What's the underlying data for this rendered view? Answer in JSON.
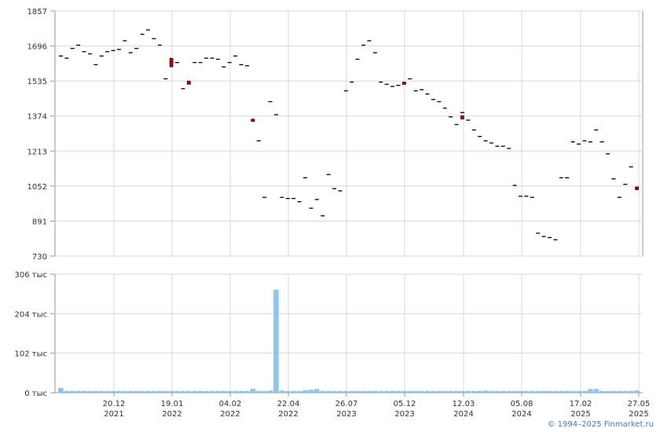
{
  "credit": "© 1994–2025 Finmarket.ru",
  "colors": {
    "grid": "#d8d8d8",
    "axis": "#999999",
    "candle_down": "#c00000",
    "volume": "#8ec6ee"
  },
  "chart_data": [
    {
      "type": "candlestick",
      "ylim": [
        730,
        1857
      ],
      "yticks": [
        "1857",
        "1696",
        "1535",
        "1374",
        "1213",
        "1052",
        "891",
        "730"
      ],
      "series": [
        {
          "values": [
            [
              0.5,
              1650
            ],
            [
              1,
              1640
            ],
            [
              1.5,
              1685
            ],
            [
              2,
              1700
            ],
            [
              2.5,
              1670
            ],
            [
              3,
              1660
            ],
            [
              3.5,
              1610
            ],
            [
              4,
              1650
            ],
            [
              4.5,
              1670
            ],
            [
              5,
              1675
            ],
            [
              5.5,
              1680
            ],
            [
              6,
              1720
            ],
            [
              6.5,
              1665
            ],
            [
              7,
              1685
            ],
            [
              7.5,
              1750
            ],
            [
              8,
              1770
            ],
            [
              8.5,
              1730
            ],
            [
              9,
              1700
            ],
            [
              9.5,
              1545
            ],
            [
              10,
              1625
            ],
            [
              10.5,
              1620
            ],
            [
              11,
              1500
            ],
            [
              11.5,
              1525
            ],
            [
              12,
              1620
            ],
            [
              12.5,
              1620
            ],
            [
              13,
              1640
            ],
            [
              13.5,
              1640
            ],
            [
              14,
              1635
            ],
            [
              14.5,
              1600
            ],
            [
              15,
              1620
            ],
            [
              15.5,
              1650
            ],
            [
              16,
              1610
            ],
            [
              16.5,
              1605
            ],
            [
              17,
              1355
            ],
            [
              17.5,
              1260
            ],
            [
              18,
              1000
            ],
            [
              18.5,
              1440
            ],
            [
              19,
              1380
            ],
            [
              19.5,
              1000
            ],
            [
              20,
              995
            ],
            [
              20.5,
              995
            ],
            [
              21,
              980
            ],
            [
              21.5,
              1090
            ],
            [
              22,
              950
            ],
            [
              22.5,
              990
            ],
            [
              23,
              915
            ],
            [
              23.5,
              1105
            ],
            [
              24,
              1040
            ],
            [
              24.5,
              1030
            ],
            [
              25,
              1490
            ],
            [
              25.5,
              1530
            ],
            [
              26,
              1635
            ],
            [
              26.5,
              1700
            ],
            [
              27,
              1720
            ],
            [
              27.5,
              1665
            ],
            [
              28,
              1530
            ],
            [
              28.5,
              1520
            ],
            [
              29,
              1510
            ],
            [
              29.5,
              1515
            ],
            [
              30,
              1525
            ],
            [
              30.5,
              1545
            ],
            [
              31,
              1490
            ],
            [
              31.5,
              1495
            ],
            [
              32,
              1475
            ],
            [
              32.5,
              1450
            ],
            [
              33,
              1440
            ],
            [
              33.5,
              1410
            ],
            [
              34,
              1370
            ],
            [
              34.5,
              1335
            ],
            [
              35,
              1390
            ],
            [
              35.5,
              1355
            ],
            [
              36,
              1310
            ],
            [
              36.5,
              1280
            ],
            [
              37,
              1260
            ],
            [
              37.5,
              1250
            ],
            [
              38,
              1235
            ],
            [
              38.5,
              1235
            ],
            [
              39,
              1225
            ],
            [
              39.5,
              1055
            ],
            [
              40,
              1005
            ],
            [
              40.5,
              1005
            ],
            [
              41,
              1000
            ],
            [
              41.5,
              835
            ],
            [
              42,
              820
            ],
            [
              42.5,
              815
            ],
            [
              43,
              805
            ],
            [
              43.5,
              1090
            ],
            [
              44,
              1090
            ],
            [
              44.5,
              1255
            ],
            [
              45,
              1245
            ],
            [
              45.5,
              1260
            ],
            [
              46,
              1255
            ],
            [
              46.5,
              1310
            ],
            [
              47,
              1255
            ],
            [
              47.5,
              1200
            ],
            [
              48,
              1085
            ],
            [
              48.5,
              1000
            ],
            [
              49,
              1060
            ],
            [
              49.5,
              1140
            ],
            [
              50,
              1040
            ]
          ],
          "markers": [
            [
              10,
              1600,
              1640
            ],
            [
              11.5,
              1520,
              1535
            ],
            [
              17,
              1350,
              1360
            ],
            [
              30,
              1520,
              1530
            ],
            [
              35,
              1360,
              1375
            ],
            [
              50,
              1035,
              1048
            ]
          ]
        }
      ]
    },
    {
      "type": "bar",
      "ylim": [
        0,
        306
      ],
      "yticks": [
        "306 тыс",
        "204 тыс",
        "102 тыс",
        "0 тыс"
      ],
      "categories": [
        "20.12\n2021",
        "19.01\n2022",
        "04.02\n2022",
        "22.04\n2022",
        "26.07\n2023",
        "05.12\n2023",
        "12.03\n2024",
        "05.08\n2024",
        "17.02\n2025",
        "27.05\n2025"
      ],
      "series": [
        {
          "values": [
            [
              0.5,
              12
            ],
            [
              1,
              4
            ],
            [
              1.5,
              4
            ],
            [
              2,
              4
            ],
            [
              2.5,
              4
            ],
            [
              3,
              4
            ],
            [
              3.5,
              4
            ],
            [
              4,
              4
            ],
            [
              4.5,
              4
            ],
            [
              5,
              4
            ],
            [
              5.5,
              4
            ],
            [
              6,
              4
            ],
            [
              6.5,
              4
            ],
            [
              7,
              4
            ],
            [
              7.5,
              4
            ],
            [
              8,
              4
            ],
            [
              8.5,
              4
            ],
            [
              9,
              4
            ],
            [
              9.5,
              4
            ],
            [
              10,
              4
            ],
            [
              10.5,
              4
            ],
            [
              11,
              4
            ],
            [
              11.5,
              4
            ],
            [
              12,
              4
            ],
            [
              12.5,
              4
            ],
            [
              13,
              4
            ],
            [
              13.5,
              4
            ],
            [
              14,
              4
            ],
            [
              14.5,
              4
            ],
            [
              15,
              4
            ],
            [
              15.5,
              4
            ],
            [
              16,
              4
            ],
            [
              16.5,
              4
            ],
            [
              17,
              10
            ],
            [
              17.5,
              4
            ],
            [
              18,
              4
            ],
            [
              18.5,
              5
            ],
            [
              19,
              265
            ],
            [
              19.5,
              5
            ],
            [
              20,
              4
            ],
            [
              20.5,
              4
            ],
            [
              21,
              4
            ],
            [
              21.5,
              6
            ],
            [
              22,
              7
            ],
            [
              22.5,
              9
            ],
            [
              23,
              4
            ],
            [
              23.5,
              4
            ],
            [
              24,
              4
            ],
            [
              24.5,
              4
            ],
            [
              25,
              4
            ],
            [
              25.5,
              4
            ],
            [
              26,
              4
            ],
            [
              26.5,
              4
            ],
            [
              27,
              4
            ],
            [
              27.5,
              4
            ],
            [
              28,
              4
            ],
            [
              28.5,
              4
            ],
            [
              29,
              4
            ],
            [
              29.5,
              4
            ],
            [
              30,
              4
            ],
            [
              30.5,
              4
            ],
            [
              31,
              4
            ],
            [
              31.5,
              4
            ],
            [
              32,
              4
            ],
            [
              32.5,
              4
            ],
            [
              33,
              4
            ],
            [
              33.5,
              4
            ],
            [
              34,
              4
            ],
            [
              34.5,
              4
            ],
            [
              35,
              4
            ],
            [
              35.5,
              4
            ],
            [
              36,
              4
            ],
            [
              36.5,
              4
            ],
            [
              37,
              5
            ],
            [
              37.5,
              4
            ],
            [
              38,
              4
            ],
            [
              38.5,
              4
            ],
            [
              39,
              4
            ],
            [
              39.5,
              4
            ],
            [
              40,
              4
            ],
            [
              40.5,
              4
            ],
            [
              41,
              4
            ],
            [
              41.5,
              4
            ],
            [
              42,
              4
            ],
            [
              42.5,
              4
            ],
            [
              43,
              4
            ],
            [
              43.5,
              4
            ],
            [
              44,
              4
            ],
            [
              44.5,
              4
            ],
            [
              45,
              4
            ],
            [
              45.5,
              4
            ],
            [
              46,
              9
            ],
            [
              46.5,
              9
            ],
            [
              47,
              4
            ],
            [
              47.5,
              4
            ],
            [
              48,
              4
            ],
            [
              48.5,
              4
            ],
            [
              49,
              4
            ],
            [
              49.5,
              4
            ],
            [
              50,
              5
            ]
          ]
        }
      ]
    }
  ]
}
